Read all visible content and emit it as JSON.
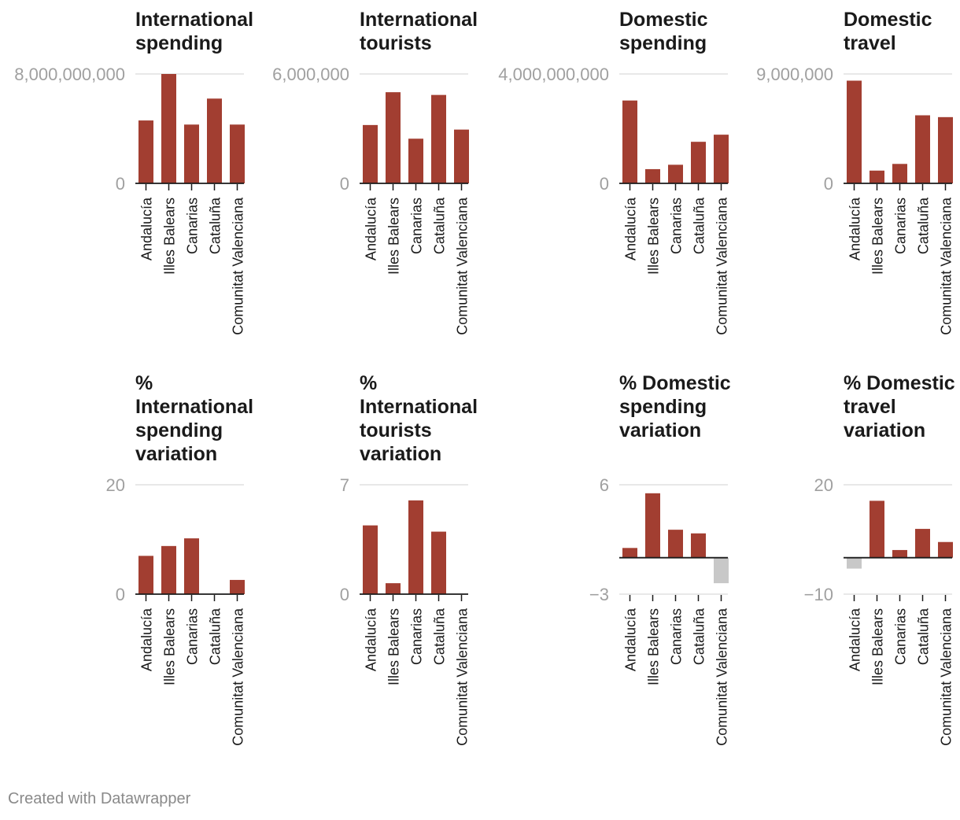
{
  "colors": {
    "bar": "#a23e31",
    "negative_bar": "#c8c8c8",
    "grid": "#e0e0e0",
    "axis": "#1a1a1a",
    "tick_label": "#a0a0a0"
  },
  "footer": "Created with Datawrapper",
  "chart_data": [
    {
      "type": "bar",
      "title": "International spending",
      "title_lines": [
        "International",
        "spending"
      ],
      "categories": [
        "Andalucía",
        "Illes Balears",
        "Canarias",
        "Cataluña",
        "Comunitat Valenciana"
      ],
      "values": [
        4600000000,
        8000000000,
        4300000000,
        6200000000,
        4300000000
      ],
      "ylim": [
        0,
        8000000000
      ],
      "y_ticks": [
        0,
        8000000000
      ],
      "y_tick_labels": [
        "0",
        "8,000,000,000"
      ]
    },
    {
      "type": "bar",
      "title": "International tourists",
      "title_lines": [
        "International",
        "tourists"
      ],
      "categories": [
        "Andalucía",
        "Illes Balears",
        "Canarias",
        "Cataluña",
        "Comunitat Valenciana"
      ],
      "values": [
        3200000,
        5000000,
        2450000,
        4850000,
        2950000
      ],
      "ylim": [
        0,
        6000000
      ],
      "y_ticks": [
        0,
        6000000
      ],
      "y_tick_labels": [
        "0",
        "6,000,000"
      ]
    },
    {
      "type": "bar",
      "title": "Domestic spending",
      "title_lines": [
        "Domestic",
        "spending"
      ],
      "categories": [
        "Andalucía",
        "Illes Balears",
        "Canarias",
        "Cataluña",
        "Comunitat Valenciana"
      ],
      "values": [
        3030000000,
        520000000,
        680000000,
        1520000000,
        1780000000
      ],
      "ylim": [
        0,
        4000000000
      ],
      "y_ticks": [
        0,
        4000000000
      ],
      "y_tick_labels": [
        "0",
        "4,000,000,000"
      ]
    },
    {
      "type": "bar",
      "title": "Domestic travel",
      "title_lines": [
        "Domestic",
        "travel"
      ],
      "categories": [
        "Andalucía",
        "Illes Balears",
        "Canarias",
        "Cataluña",
        "Comunitat Valenciana"
      ],
      "values": [
        8450000,
        1050000,
        1600000,
        5600000,
        5450000
      ],
      "ylim": [
        0,
        9000000
      ],
      "y_ticks": [
        0,
        9000000
      ],
      "y_tick_labels": [
        "0",
        "9,000,000"
      ]
    },
    {
      "type": "bar",
      "title": "% International spending variation",
      "title_lines": [
        "%",
        "International",
        "spending",
        "variation"
      ],
      "categories": [
        "Andalucía",
        "Illes Balears",
        "Canarias",
        "Cataluña",
        "Comunitat Valenciana"
      ],
      "values": [
        7,
        8.8,
        10.2,
        0,
        2.6
      ],
      "ylim": [
        0,
        20
      ],
      "y_ticks": [
        0,
        20
      ],
      "y_tick_labels": [
        "0",
        "20"
      ]
    },
    {
      "type": "bar",
      "title": "% International tourists variation",
      "title_lines": [
        "%",
        "International",
        "tourists",
        "variation"
      ],
      "categories": [
        "Andalucía",
        "Illes Balears",
        "Canarias",
        "Cataluña",
        "Comunitat Valenciana"
      ],
      "values": [
        4.4,
        0.7,
        6,
        4,
        0
      ],
      "ylim": [
        0,
        7
      ],
      "y_ticks": [
        0,
        7
      ],
      "y_tick_labels": [
        "0",
        "7"
      ]
    },
    {
      "type": "bar",
      "title": "% Domestic spending variation",
      "title_lines": [
        "% Domestic",
        "spending",
        "variation"
      ],
      "categories": [
        "Andalucía",
        "Illes Balears",
        "Canarias",
        "Cataluña",
        "Comunitat Valenciana"
      ],
      "values": [
        0.8,
        5.3,
        2.3,
        2,
        -2.1
      ],
      "ylim": [
        -3,
        6
      ],
      "y_ticks": [
        -3,
        6
      ],
      "y_tick_labels": [
        "−3",
        "6"
      ]
    },
    {
      "type": "bar",
      "title": "% Domestic travel variation",
      "title_lines": [
        "% Domestic",
        "travel",
        "variation"
      ],
      "categories": [
        "Andalucía",
        "Illes Balears",
        "Canarias",
        "Cataluña",
        "Comunitat Valenciana"
      ],
      "values": [
        -3,
        15.6,
        2.1,
        7.9,
        4.3
      ],
      "ylim": [
        -10,
        20
      ],
      "y_ticks": [
        -10,
        20
      ],
      "y_tick_labels": [
        "−10",
        "20"
      ]
    }
  ]
}
